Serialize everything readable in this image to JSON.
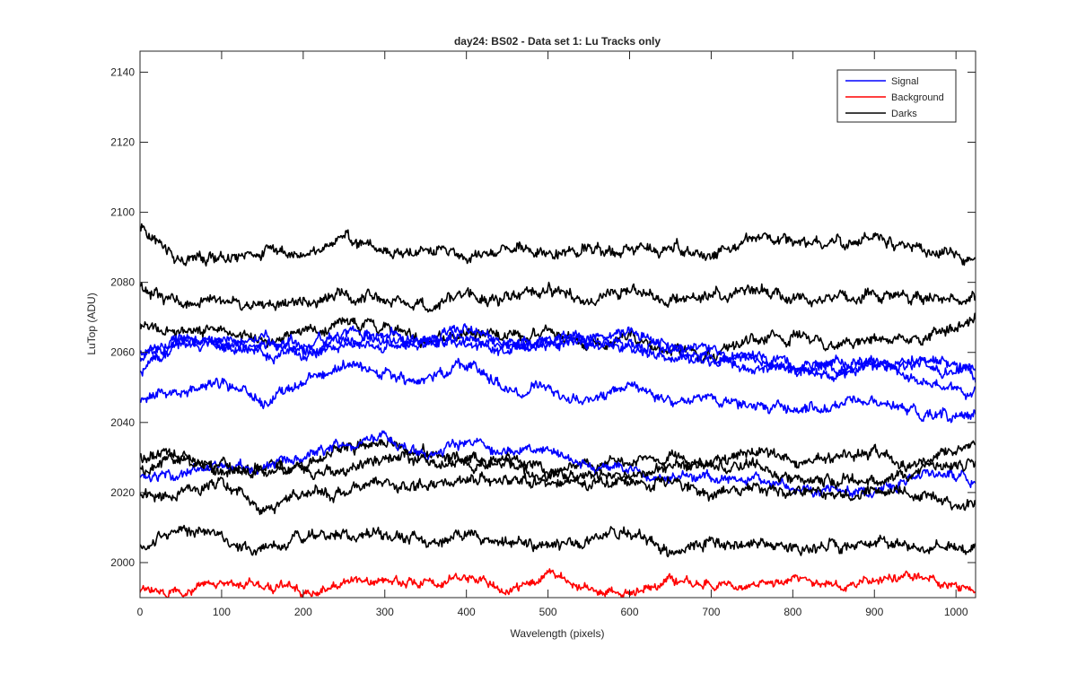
{
  "chart_data": {
    "type": "line",
    "title": "day24: BS02 - Data set 1: Lu Tracks only",
    "xlabel": "Wavelength (pixels)",
    "ylabel": "LuTop (ADU)",
    "xlim": [
      0,
      1024
    ],
    "ylim": [
      1990,
      2146
    ],
    "x_ticks": [
      0,
      100,
      200,
      300,
      400,
      500,
      600,
      700,
      800,
      900,
      1000
    ],
    "y_ticks": [
      2000,
      2020,
      2040,
      2060,
      2080,
      2100,
      2120,
      2140
    ],
    "grid": false,
    "legend_position": "top-right",
    "legend": [
      {
        "label": "Signal",
        "color": "#0000ff"
      },
      {
        "label": "Background",
        "color": "#ff0000"
      },
      {
        "label": "Darks",
        "color": "#000000"
      }
    ],
    "x": [
      0,
      50,
      100,
      150,
      200,
      250,
      300,
      350,
      400,
      450,
      500,
      550,
      600,
      650,
      700,
      750,
      800,
      850,
      900,
      950,
      1024
    ],
    "series": [
      {
        "group": "Darks",
        "color": "#000000",
        "noise": 1.8,
        "values": [
          2095,
          2087,
          2087,
          2089,
          2088,
          2093,
          2089,
          2089,
          2087,
          2091,
          2088,
          2090,
          2089,
          2090,
          2088,
          2094,
          2091,
          2090,
          2092,
          2090,
          2086
        ]
      },
      {
        "group": "Darks",
        "color": "#000000",
        "noise": 1.8,
        "values": [
          2078,
          2074,
          2075,
          2073,
          2075,
          2076,
          2075,
          2073,
          2078,
          2075,
          2078,
          2074,
          2078,
          2075,
          2076,
          2078,
          2075,
          2076,
          2077,
          2076,
          2075
        ]
      },
      {
        "group": "Darks",
        "color": "#000000",
        "noise": 1.8,
        "values": [
          2068,
          2065,
          2067,
          2064,
          2065,
          2069,
          2067,
          2063,
          2066,
          2064,
          2066,
          2063,
          2064,
          2061,
          2059,
          2064,
          2065,
          2062,
          2064,
          2064,
          2069
        ]
      },
      {
        "group": "Signal",
        "color": "#0000ff",
        "noise": 1.7,
        "values": [
          2060,
          2062,
          2063,
          2062,
          2063,
          2063,
          2062,
          2064,
          2063,
          2062,
          2063,
          2063,
          2062,
          2058,
          2058,
          2056,
          2055,
          2056,
          2057,
          2057,
          2053
        ]
      },
      {
        "group": "Signal",
        "color": "#0000ff",
        "noise": 1.7,
        "values": [
          2058,
          2064,
          2062,
          2060,
          2059,
          2062,
          2065,
          2063,
          2067,
          2062,
          2064,
          2063,
          2062,
          2061,
          2057,
          2059,
          2057,
          2052,
          2057,
          2052,
          2049
        ]
      },
      {
        "group": "Signal",
        "color": "#0000ff",
        "noise": 1.7,
        "values": [
          2054,
          2064,
          2062,
          2064,
          2060,
          2066,
          2063,
          2062,
          2064,
          2060,
          2062,
          2064,
          2066,
          2061,
          2060,
          2058,
          2055,
          2058,
          2057,
          2058,
          2056
        ]
      },
      {
        "group": "Signal",
        "color": "#0000ff",
        "noise": 1.7,
        "values": [
          2047,
          2049,
          2052,
          2045,
          2052,
          2056,
          2054,
          2051,
          2057,
          2049,
          2050,
          2046,
          2050,
          2046,
          2047,
          2045,
          2044,
          2045,
          2046,
          2043,
          2042
        ]
      },
      {
        "group": "Darks",
        "color": "#000000",
        "noise": 1.8,
        "values": [
          2030,
          2031,
          2026,
          2028,
          2028,
          2033,
          2033,
          2031,
          2028,
          2030,
          2027,
          2028,
          2029,
          2030,
          2028,
          2031,
          2029,
          2030,
          2032,
          2028,
          2034
        ]
      },
      {
        "group": "Signal",
        "color": "#0000ff",
        "noise": 1.6,
        "values": [
          2025,
          2025,
          2028,
          2027,
          2030,
          2034,
          2036,
          2030,
          2034,
          2031,
          2032,
          2028,
          2026,
          2024,
          2025,
          2024,
          2021,
          2021,
          2020,
          2025,
          2024
        ]
      },
      {
        "group": "Darks",
        "color": "#000000",
        "noise": 1.8,
        "values": [
          2027,
          2029,
          2028,
          2026,
          2027,
          2026,
          2030,
          2029,
          2028,
          2029,
          2024,
          2026,
          2025,
          2027,
          2028,
          2028,
          2024,
          2023,
          2023,
          2027,
          2029
        ]
      },
      {
        "group": "Darks",
        "color": "#000000",
        "noise": 1.8,
        "values": [
          2019,
          2020,
          2023,
          2015,
          2019,
          2020,
          2023,
          2022,
          2024,
          2023,
          2022,
          2022,
          2022,
          2023,
          2020,
          2021,
          2020,
          2020,
          2021,
          2020,
          2016
        ]
      },
      {
        "group": "Darks",
        "color": "#000000",
        "noise": 1.8,
        "values": [
          2005,
          2010,
          2007,
          2003,
          2007,
          2008,
          2008,
          2006,
          2008,
          2006,
          2005,
          2006,
          2009,
          2003,
          2006,
          2006,
          2004,
          2005,
          2006,
          2004,
          2005
        ]
      },
      {
        "group": "Background",
        "color": "#ff0000",
        "noise": 1.4,
        "values": [
          1992,
          1992,
          1994,
          1993,
          1992,
          1994,
          1995,
          1994,
          1996,
          1992,
          1997,
          1992,
          1991,
          1994,
          1994,
          1993,
          1996,
          1993,
          1995,
          1996,
          1992
        ]
      }
    ]
  }
}
